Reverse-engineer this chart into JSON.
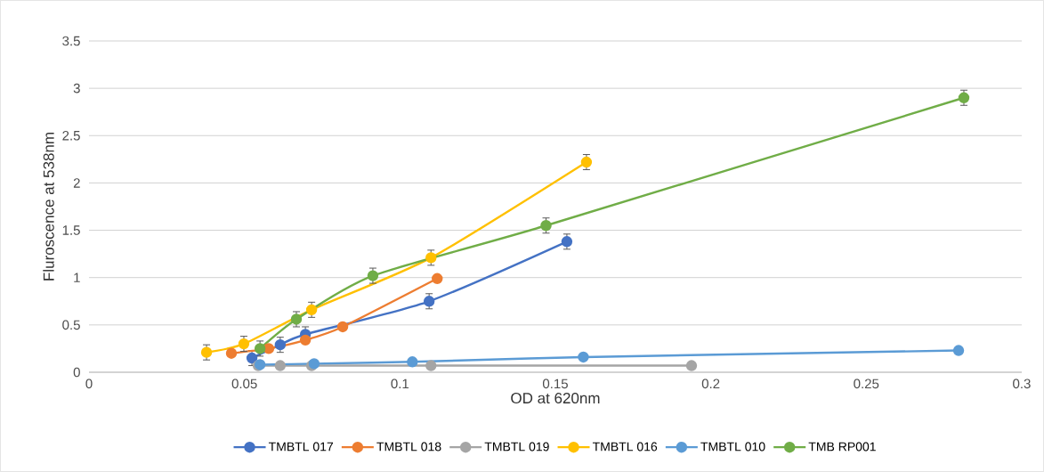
{
  "chart_data": {
    "type": "line",
    "xlabel": "OD at 620nm",
    "ylabel": "Fluroscence at 538nm",
    "xlim": [
      0,
      0.3
    ],
    "xticks": [
      0,
      0.05,
      0.1,
      0.15,
      0.2,
      0.25,
      0.3
    ],
    "ylim": [
      0,
      3.5
    ],
    "yticks": [
      0,
      0.5,
      1,
      1.5,
      2,
      2.5,
      3,
      3.5
    ],
    "grid": "y",
    "legend": "bottom",
    "marker": "circle",
    "line_style": "solid",
    "series": [
      {
        "name": "TMBTL 017",
        "color": "#4472c4",
        "x": [
          0.0524,
          0.0615,
          0.0696,
          0.1094,
          0.1537
        ],
        "values": [
          0.15,
          0.29,
          0.4,
          0.75,
          1.38
        ],
        "errors": [
          0.08,
          0.08,
          0.08,
          0.08,
          0.08
        ]
      },
      {
        "name": "TMBTL 018",
        "color": "#ed7d31",
        "x": [
          0.0458,
          0.0578,
          0.0696,
          0.0816,
          0.112
        ],
        "values": [
          0.2,
          0.25,
          0.34,
          0.48,
          0.99
        ]
      },
      {
        "name": "TMBTL 019",
        "color": "#a5a5a5",
        "x": [
          0.0544,
          0.0615,
          0.0716,
          0.11,
          0.1938
        ],
        "values": [
          0.07,
          0.07,
          0.07,
          0.07,
          0.07
        ]
      },
      {
        "name": "TMBTL 016",
        "color": "#ffc000",
        "x": [
          0.0378,
          0.0498,
          0.0716,
          0.11,
          0.16
        ],
        "values": [
          0.21,
          0.3,
          0.66,
          1.21,
          2.22
        ],
        "errors": [
          0.08,
          0.08,
          0.08,
          0.08,
          0.08
        ]
      },
      {
        "name": "TMBTL 010",
        "color": "#5b9bd5",
        "x": [
          0.055,
          0.0724,
          0.104,
          0.159,
          0.2797
        ],
        "values": [
          0.08,
          0.09,
          0.11,
          0.16,
          0.23
        ]
      },
      {
        "name": "TMB RP001",
        "color": "#70ad47",
        "x": [
          0.055,
          0.0667,
          0.0913,
          0.147,
          0.2814
        ],
        "values": [
          0.25,
          0.56,
          1.02,
          1.55,
          2.9
        ],
        "errors": [
          0.08,
          0.08,
          0.08,
          0.08,
          0.08
        ]
      }
    ]
  }
}
